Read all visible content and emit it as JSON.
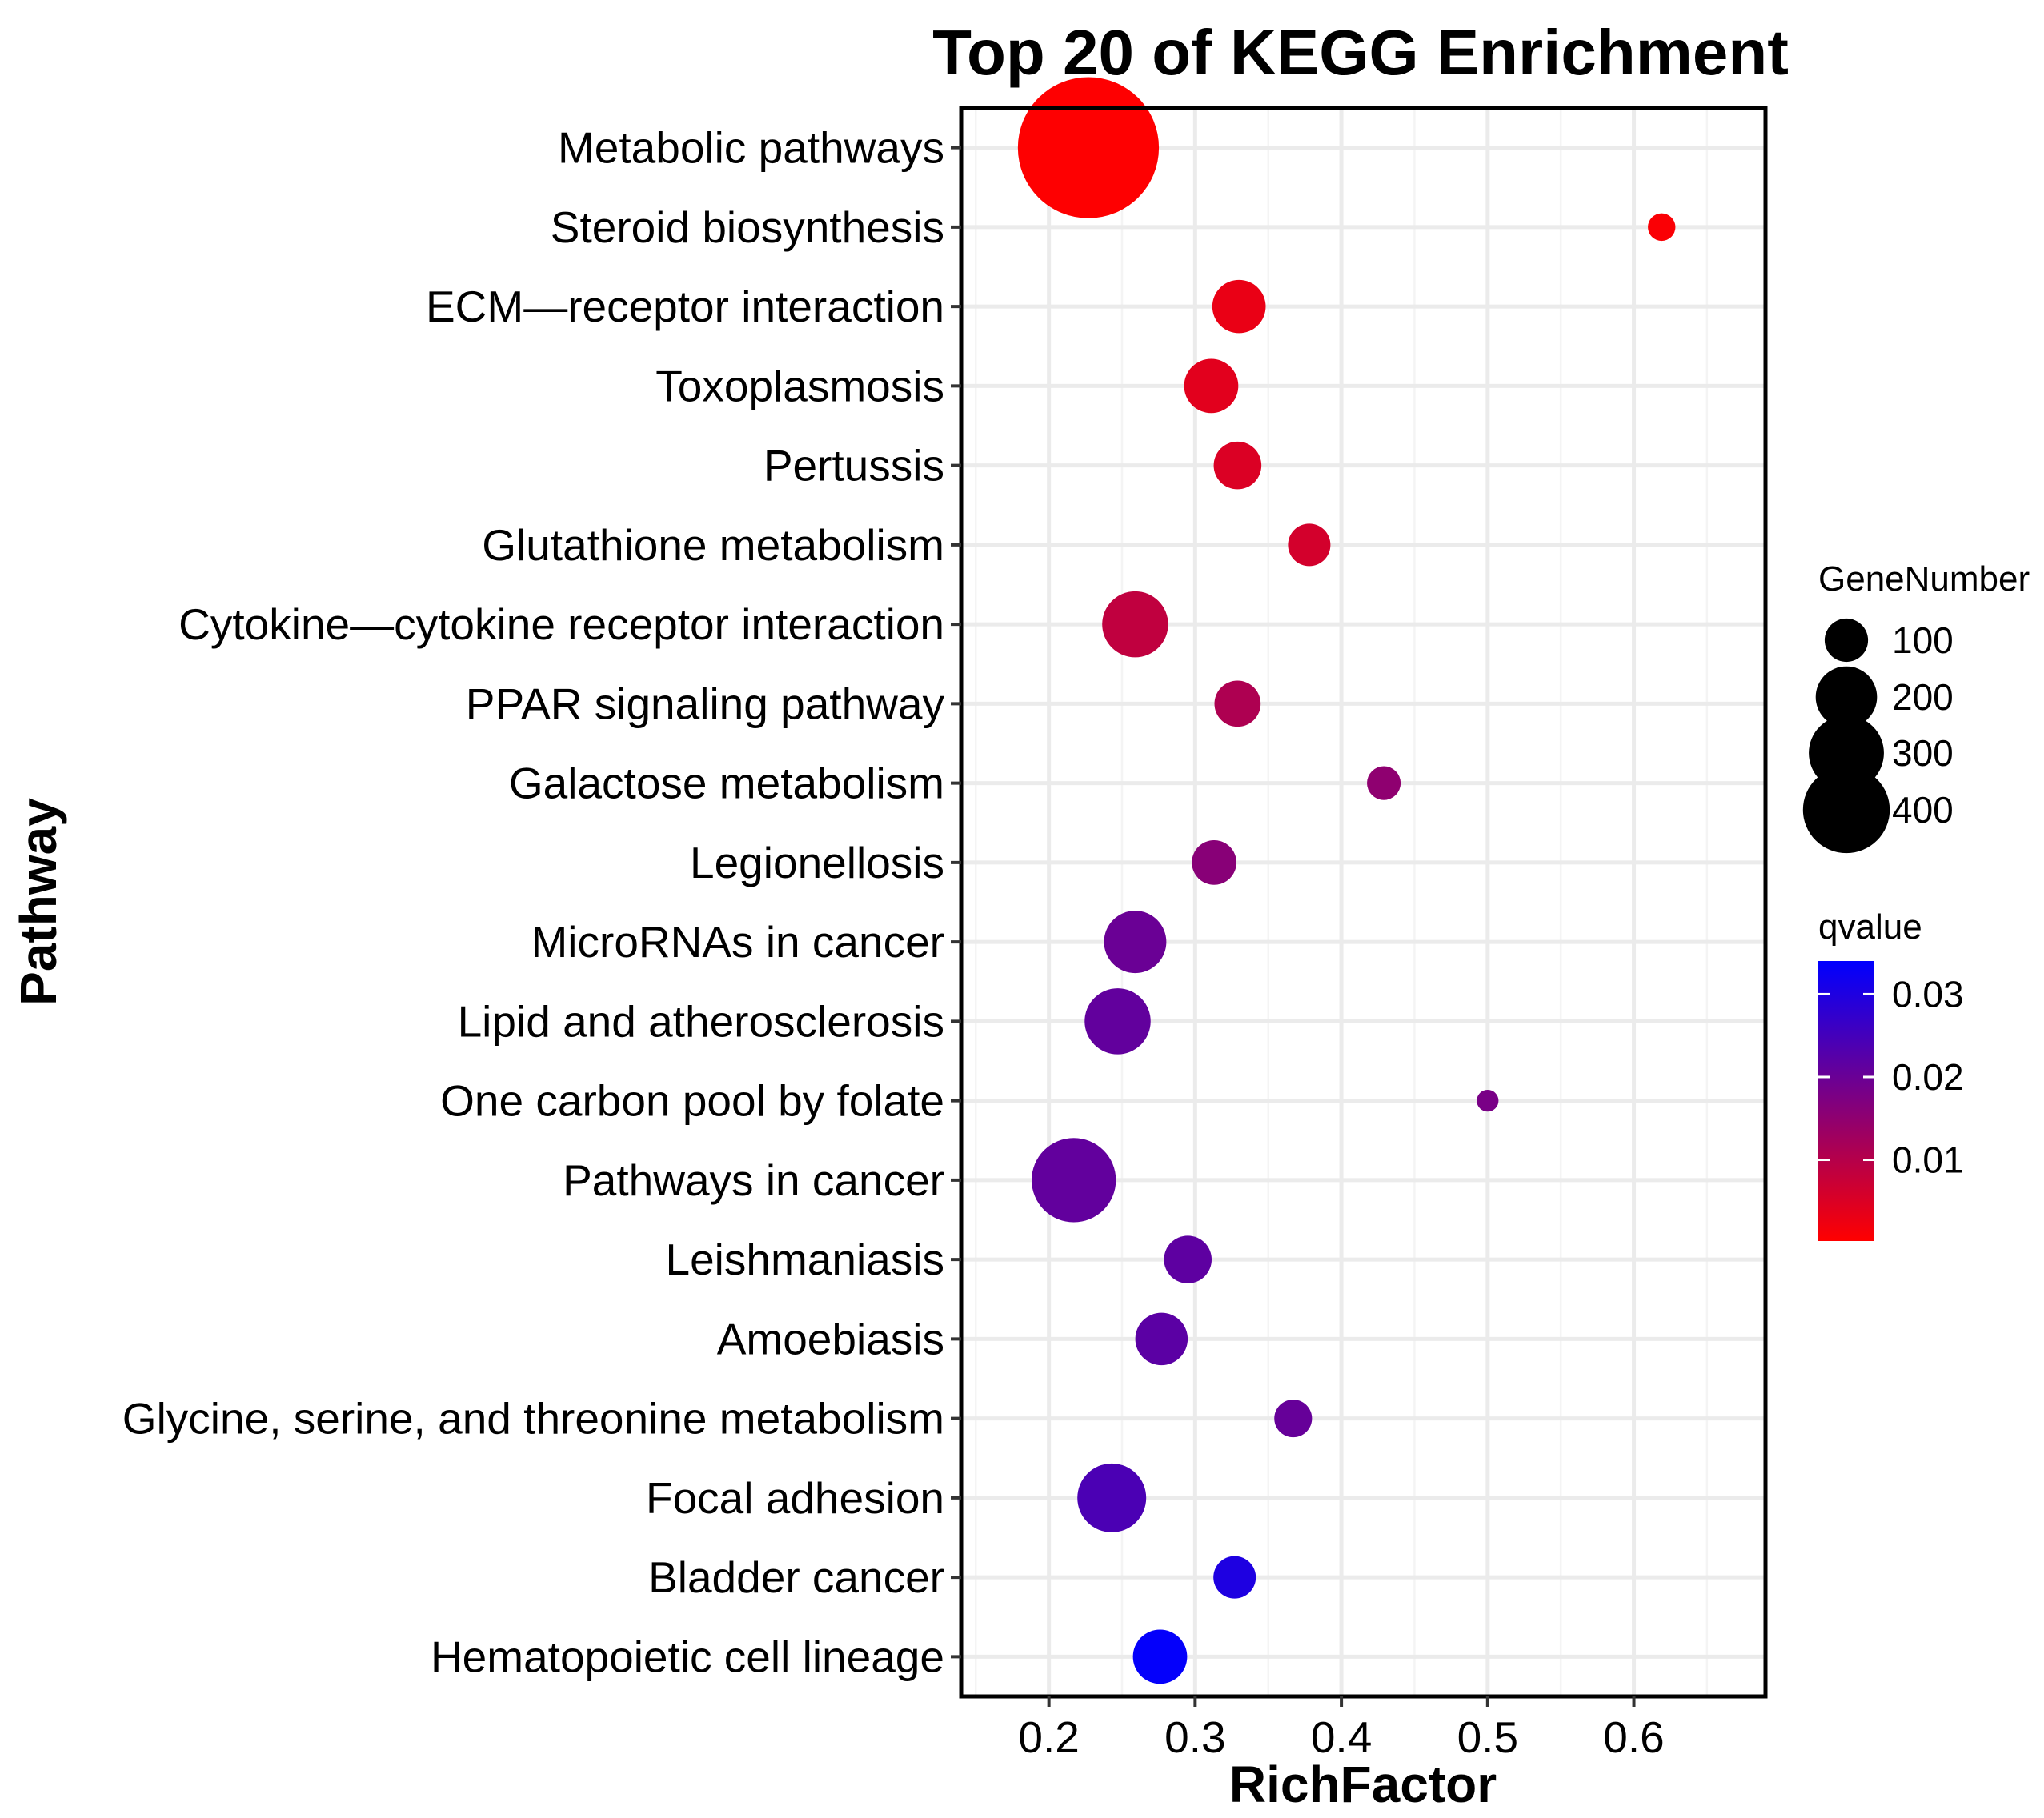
{
  "chart_data": {
    "type": "scatter",
    "title": "Top 20 of KEGG Enrichment",
    "xlabel": "RichFactor",
    "ylabel": "Pathway",
    "xlim": [
      0.14,
      0.69
    ],
    "xticks": [
      0.2,
      0.3,
      0.4,
      0.5,
      0.6
    ],
    "xtick_labels": [
      "0.2",
      "0.3",
      "0.4",
      "0.5",
      "0.6"
    ],
    "grid": true,
    "points": [
      {
        "pathway": "Metabolic pathways",
        "rich_factor": 0.227,
        "gene_number": 420,
        "qvalue": 0.0003
      },
      {
        "pathway": "Steroid biosynthesis",
        "rich_factor": 0.619,
        "gene_number": 16,
        "qvalue": 0.0008
      },
      {
        "pathway": "ECM—receptor interaction",
        "rich_factor": 0.33,
        "gene_number": 60,
        "qvalue": 0.003
      },
      {
        "pathway": "Toxoplasmosis",
        "rich_factor": 0.311,
        "gene_number": 62,
        "qvalue": 0.004
      },
      {
        "pathway": "Pertussis",
        "rich_factor": 0.329,
        "gene_number": 48,
        "qvalue": 0.005
      },
      {
        "pathway": "Glutathione metabolism",
        "rich_factor": 0.378,
        "gene_number": 38,
        "qvalue": 0.006
      },
      {
        "pathway": "Cytokine—cytokine receptor interaction",
        "rich_factor": 0.259,
        "gene_number": 92,
        "qvalue": 0.0085
      },
      {
        "pathway": "PPAR signaling pathway",
        "rich_factor": 0.329,
        "gene_number": 45,
        "qvalue": 0.011
      },
      {
        "pathway": "Galactose metabolism",
        "rich_factor": 0.429,
        "gene_number": 24,
        "qvalue": 0.015
      },
      {
        "pathway": "Legionellosis",
        "rich_factor": 0.313,
        "gene_number": 42,
        "qvalue": 0.016
      },
      {
        "pathway": "MicroRNAs in cancer",
        "rich_factor": 0.259,
        "gene_number": 82,
        "qvalue": 0.02
      },
      {
        "pathway": "Lipid and atherosclerosis",
        "rich_factor": 0.247,
        "gene_number": 92,
        "qvalue": 0.021
      },
      {
        "pathway": "One carbon pool by folate",
        "rich_factor": 0.5,
        "gene_number": 10,
        "qvalue": 0.018
      },
      {
        "pathway": "Pathways in cancer",
        "rich_factor": 0.217,
        "gene_number": 150,
        "qvalue": 0.021
      },
      {
        "pathway": "Leishmaniasis",
        "rich_factor": 0.295,
        "gene_number": 48,
        "qvalue": 0.0215
      },
      {
        "pathway": "Amoebiasis",
        "rich_factor": 0.277,
        "gene_number": 58,
        "qvalue": 0.022
      },
      {
        "pathway": "Glycine, serine, and threonine metabolism",
        "rich_factor": 0.367,
        "gene_number": 30,
        "qvalue": 0.0205
      },
      {
        "pathway": "Focal adhesion",
        "rich_factor": 0.243,
        "gene_number": 100,
        "qvalue": 0.024
      },
      {
        "pathway": "Bladder cancer",
        "rich_factor": 0.327,
        "gene_number": 38,
        "qvalue": 0.03
      },
      {
        "pathway": "Hematopoietic cell lineage",
        "rich_factor": 0.276,
        "gene_number": 62,
        "qvalue": 0.0335
      }
    ],
    "size_legend": {
      "title": "GeneNumber",
      "values": [
        100,
        200,
        300,
        400
      ],
      "labels": [
        "100",
        "200",
        "300",
        "400"
      ]
    },
    "color_legend": {
      "title": "qvalue",
      "min": 0.0002,
      "max": 0.034,
      "ticks": [
        0.01,
        0.02,
        0.03
      ],
      "tick_labels": [
        "0.01",
        "0.02",
        "0.03"
      ],
      "low_color": "#ff0000",
      "high_color": "#0000ff"
    },
    "legend_position": "right"
  }
}
